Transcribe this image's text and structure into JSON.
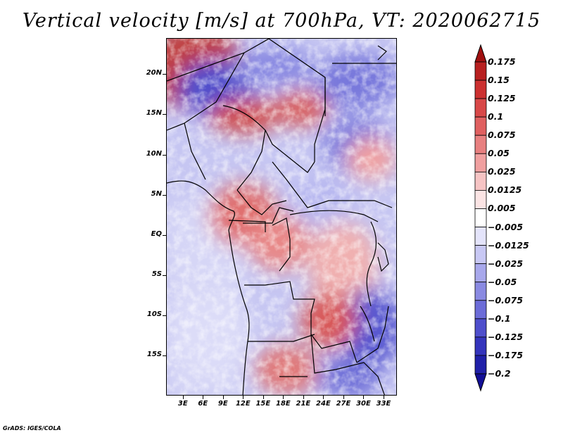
{
  "title": "Vertical velocity [m/s] at 700hPa, VT: 2020062715",
  "credit": "GrADS: IGES/COLA",
  "map": {
    "lat_labels": [
      "20N",
      "15N",
      "10N",
      "5N",
      "EQ",
      "5S",
      "10S",
      "15S"
    ],
    "lat_values": [
      20,
      15,
      10,
      5,
      0,
      -5,
      -10,
      -15
    ],
    "lon_labels": [
      "3E",
      "6E",
      "9E",
      "12E",
      "15E",
      "18E",
      "21E",
      "24E",
      "27E",
      "30E",
      "33E"
    ],
    "lon_values": [
      3,
      6,
      9,
      12,
      15,
      18,
      21,
      24,
      27,
      30,
      33
    ]
  },
  "colorbar": {
    "labels": [
      "0.175",
      "0.15",
      "0.125",
      "0.1",
      "0.075",
      "0.05",
      "0.025",
      "0.0125",
      "0.005",
      "−0.005",
      "−0.0125",
      "−0.025",
      "−0.05",
      "−0.075",
      "−0.1",
      "−0.125",
      "−0.175",
      "−0.2"
    ],
    "colors": [
      "#a01010",
      "#b82020",
      "#cc3030",
      "#d84848",
      "#e06060",
      "#e88080",
      "#f0a0a0",
      "#f6c4c4",
      "#fbe4e4",
      "#ffffff",
      "#e4e4fb",
      "#c8c8f4",
      "#a8a8ec",
      "#8a8ae2",
      "#6c6cd8",
      "#4e4ecc",
      "#3434bc",
      "#2020a8",
      "#120e96"
    ]
  }
}
